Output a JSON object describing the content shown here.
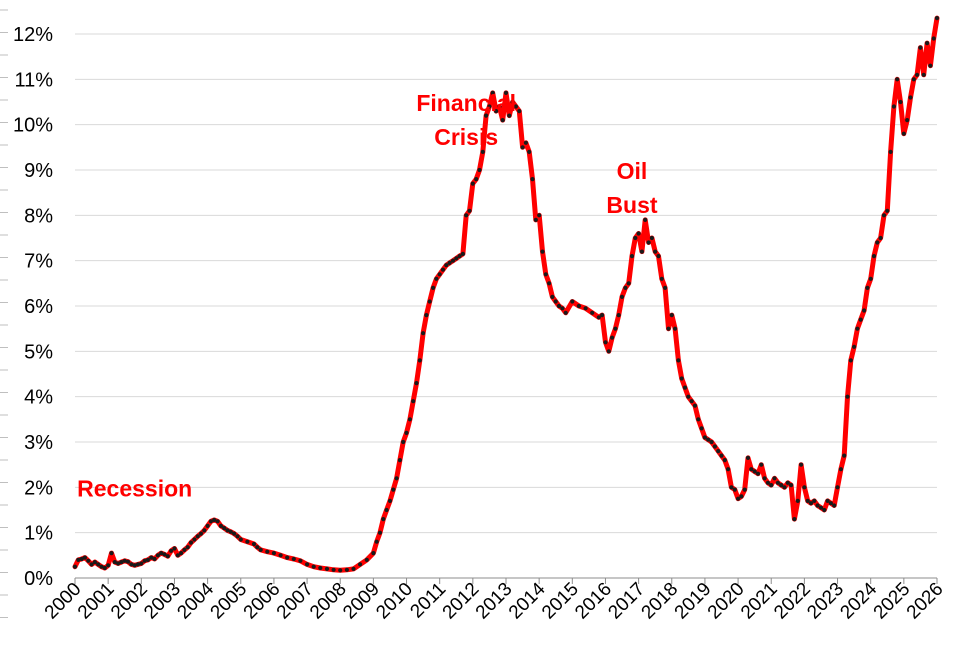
{
  "chart_data": {
    "type": "line",
    "title": "",
    "xlabel": "",
    "ylabel": "",
    "xlim": [
      2000,
      2026
    ],
    "ylim": [
      0,
      12
    ],
    "x_ticks": [
      "2000",
      "2001",
      "2002",
      "2003",
      "2004",
      "2005",
      "2006",
      "2007",
      "2008",
      "2009",
      "2010",
      "2011",
      "2012",
      "2013",
      "2014",
      "2015",
      "2016",
      "2017",
      "2018",
      "2019",
      "2020",
      "2021",
      "2022",
      "2023",
      "2024",
      "2025",
      "2026"
    ],
    "y_ticks": [
      "0%",
      "1%",
      "2%",
      "3%",
      "4%",
      "5%",
      "6%",
      "7%",
      "8%",
      "9%",
      "10%",
      "11%",
      "12%"
    ],
    "grid": "horizontal",
    "legend": "none",
    "colors": {
      "line": "#ff0000",
      "markers": "#1a1a1a",
      "annotations": "#ff0000",
      "grid": "#d9d9d9"
    },
    "annotations": [
      {
        "lines": [
          "Recession"
        ],
        "x": 2001.8,
        "y": 1.8
      },
      {
        "lines": [
          "Financial",
          "Crisis"
        ],
        "x": 2011.8,
        "y": 10.3
      },
      {
        "lines": [
          "Oil",
          "Bust"
        ],
        "x": 2016.8,
        "y": 8.8
      }
    ],
    "series": [
      {
        "unit": "%",
        "points": [
          [
            2000.0,
            0.25
          ],
          [
            2000.1,
            0.4
          ],
          [
            2000.2,
            0.42
          ],
          [
            2000.3,
            0.45
          ],
          [
            2000.4,
            0.38
          ],
          [
            2000.5,
            0.3
          ],
          [
            2000.6,
            0.35
          ],
          [
            2000.7,
            0.3
          ],
          [
            2000.8,
            0.25
          ],
          [
            2000.9,
            0.22
          ],
          [
            2001.0,
            0.28
          ],
          [
            2001.1,
            0.55
          ],
          [
            2001.2,
            0.35
          ],
          [
            2001.3,
            0.32
          ],
          [
            2001.4,
            0.35
          ],
          [
            2001.5,
            0.38
          ],
          [
            2001.6,
            0.36
          ],
          [
            2001.7,
            0.3
          ],
          [
            2001.8,
            0.28
          ],
          [
            2001.9,
            0.3
          ],
          [
            2002.0,
            0.32
          ],
          [
            2002.1,
            0.38
          ],
          [
            2002.2,
            0.4
          ],
          [
            2002.3,
            0.45
          ],
          [
            2002.4,
            0.42
          ],
          [
            2002.5,
            0.5
          ],
          [
            2002.6,
            0.55
          ],
          [
            2002.7,
            0.52
          ],
          [
            2002.8,
            0.48
          ],
          [
            2002.9,
            0.6
          ],
          [
            2003.0,
            0.65
          ],
          [
            2003.1,
            0.5
          ],
          [
            2003.2,
            0.55
          ],
          [
            2003.3,
            0.62
          ],
          [
            2003.4,
            0.68
          ],
          [
            2003.5,
            0.78
          ],
          [
            2003.6,
            0.85
          ],
          [
            2003.7,
            0.92
          ],
          [
            2003.8,
            0.98
          ],
          [
            2003.9,
            1.05
          ],
          [
            2004.0,
            1.15
          ],
          [
            2004.1,
            1.25
          ],
          [
            2004.2,
            1.28
          ],
          [
            2004.3,
            1.25
          ],
          [
            2004.4,
            1.15
          ],
          [
            2004.5,
            1.1
          ],
          [
            2004.6,
            1.05
          ],
          [
            2004.7,
            1.02
          ],
          [
            2004.8,
            0.98
          ],
          [
            2004.9,
            0.92
          ],
          [
            2005.0,
            0.85
          ],
          [
            2005.2,
            0.8
          ],
          [
            2005.4,
            0.75
          ],
          [
            2005.5,
            0.68
          ],
          [
            2005.6,
            0.62
          ],
          [
            2005.8,
            0.58
          ],
          [
            2006.0,
            0.55
          ],
          [
            2006.2,
            0.5
          ],
          [
            2006.4,
            0.45
          ],
          [
            2006.6,
            0.42
          ],
          [
            2006.8,
            0.38
          ],
          [
            2007.0,
            0.3
          ],
          [
            2007.2,
            0.25
          ],
          [
            2007.4,
            0.22
          ],
          [
            2007.6,
            0.2
          ],
          [
            2007.8,
            0.18
          ],
          [
            2008.0,
            0.17
          ],
          [
            2008.2,
            0.18
          ],
          [
            2008.4,
            0.2
          ],
          [
            2008.6,
            0.3
          ],
          [
            2008.8,
            0.4
          ],
          [
            2009.0,
            0.55
          ],
          [
            2009.1,
            0.8
          ],
          [
            2009.2,
            1.0
          ],
          [
            2009.3,
            1.3
          ],
          [
            2009.4,
            1.5
          ],
          [
            2009.5,
            1.7
          ],
          [
            2009.6,
            1.95
          ],
          [
            2009.7,
            2.2
          ],
          [
            2009.8,
            2.6
          ],
          [
            2009.9,
            3.0
          ],
          [
            2010.0,
            3.2
          ],
          [
            2010.1,
            3.5
          ],
          [
            2010.2,
            3.9
          ],
          [
            2010.3,
            4.3
          ],
          [
            2010.4,
            4.8
          ],
          [
            2010.5,
            5.4
          ],
          [
            2010.6,
            5.8
          ],
          [
            2010.7,
            6.1
          ],
          [
            2010.8,
            6.4
          ],
          [
            2010.9,
            6.6
          ],
          [
            2011.0,
            6.7
          ],
          [
            2011.1,
            6.8
          ],
          [
            2011.2,
            6.9
          ],
          [
            2011.3,
            6.95
          ],
          [
            2011.4,
            7.0
          ],
          [
            2011.5,
            7.05
          ],
          [
            2011.6,
            7.1
          ],
          [
            2011.7,
            7.15
          ],
          [
            2011.8,
            8.0
          ],
          [
            2011.9,
            8.1
          ],
          [
            2012.0,
            8.7
          ],
          [
            2012.1,
            8.8
          ],
          [
            2012.2,
            9.0
          ],
          [
            2012.3,
            9.4
          ],
          [
            2012.4,
            10.2
          ],
          [
            2012.5,
            10.4
          ],
          [
            2012.6,
            10.7
          ],
          [
            2012.7,
            10.3
          ],
          [
            2012.8,
            10.4
          ],
          [
            2012.9,
            10.1
          ],
          [
            2013.0,
            10.7
          ],
          [
            2013.1,
            10.2
          ],
          [
            2013.2,
            10.5
          ],
          [
            2013.3,
            10.4
          ],
          [
            2013.4,
            10.3
          ],
          [
            2013.5,
            9.5
          ],
          [
            2013.6,
            9.6
          ],
          [
            2013.7,
            9.4
          ],
          [
            2013.8,
            8.8
          ],
          [
            2013.9,
            7.9
          ],
          [
            2014.0,
            8.0
          ],
          [
            2014.1,
            7.2
          ],
          [
            2014.2,
            6.7
          ],
          [
            2014.3,
            6.5
          ],
          [
            2014.4,
            6.2
          ],
          [
            2014.5,
            6.1
          ],
          [
            2014.6,
            6.0
          ],
          [
            2014.7,
            5.95
          ],
          [
            2014.8,
            5.85
          ],
          [
            2015.0,
            6.1
          ],
          [
            2015.2,
            6.0
          ],
          [
            2015.4,
            5.95
          ],
          [
            2015.6,
            5.85
          ],
          [
            2015.8,
            5.75
          ],
          [
            2015.9,
            5.8
          ],
          [
            2016.0,
            5.2
          ],
          [
            2016.1,
            5.0
          ],
          [
            2016.2,
            5.3
          ],
          [
            2016.3,
            5.5
          ],
          [
            2016.4,
            5.8
          ],
          [
            2016.5,
            6.2
          ],
          [
            2016.6,
            6.4
          ],
          [
            2016.7,
            6.5
          ],
          [
            2016.8,
            7.1
          ],
          [
            2016.9,
            7.5
          ],
          [
            2017.0,
            7.6
          ],
          [
            2017.1,
            7.2
          ],
          [
            2017.2,
            7.9
          ],
          [
            2017.3,
            7.4
          ],
          [
            2017.4,
            7.5
          ],
          [
            2017.5,
            7.2
          ],
          [
            2017.6,
            7.1
          ],
          [
            2017.7,
            6.6
          ],
          [
            2017.8,
            6.4
          ],
          [
            2017.9,
            5.5
          ],
          [
            2018.0,
            5.8
          ],
          [
            2018.1,
            5.5
          ],
          [
            2018.2,
            4.8
          ],
          [
            2018.3,
            4.4
          ],
          [
            2018.4,
            4.2
          ],
          [
            2018.5,
            4.0
          ],
          [
            2018.6,
            3.9
          ],
          [
            2018.7,
            3.8
          ],
          [
            2018.8,
            3.5
          ],
          [
            2018.9,
            3.3
          ],
          [
            2019.0,
            3.1
          ],
          [
            2019.1,
            3.05
          ],
          [
            2019.2,
            3.0
          ],
          [
            2019.3,
            2.9
          ],
          [
            2019.4,
            2.8
          ],
          [
            2019.5,
            2.7
          ],
          [
            2019.6,
            2.6
          ],
          [
            2019.7,
            2.4
          ],
          [
            2019.8,
            2.0
          ],
          [
            2019.9,
            1.95
          ],
          [
            2020.0,
            1.75
          ],
          [
            2020.1,
            1.8
          ],
          [
            2020.2,
            1.95
          ],
          [
            2020.3,
            2.65
          ],
          [
            2020.4,
            2.4
          ],
          [
            2020.5,
            2.35
          ],
          [
            2020.6,
            2.3
          ],
          [
            2020.7,
            2.5
          ],
          [
            2020.8,
            2.2
          ],
          [
            2020.9,
            2.1
          ],
          [
            2021.0,
            2.05
          ],
          [
            2021.1,
            2.2
          ],
          [
            2021.2,
            2.1
          ],
          [
            2021.3,
            2.05
          ],
          [
            2021.4,
            2.0
          ],
          [
            2021.5,
            2.1
          ],
          [
            2021.6,
            2.05
          ],
          [
            2021.7,
            1.3
          ],
          [
            2021.8,
            1.7
          ],
          [
            2021.9,
            2.5
          ],
          [
            2022.0,
            2.0
          ],
          [
            2022.1,
            1.7
          ],
          [
            2022.2,
            1.65
          ],
          [
            2022.3,
            1.7
          ],
          [
            2022.4,
            1.6
          ],
          [
            2022.5,
            1.55
          ],
          [
            2022.6,
            1.5
          ],
          [
            2022.7,
            1.7
          ],
          [
            2022.8,
            1.65
          ],
          [
            2022.9,
            1.6
          ],
          [
            2023.0,
            2.0
          ],
          [
            2023.1,
            2.4
          ],
          [
            2023.2,
            2.7
          ],
          [
            2023.3,
            4.0
          ],
          [
            2023.4,
            4.8
          ],
          [
            2023.5,
            5.1
          ],
          [
            2023.6,
            5.5
          ],
          [
            2023.7,
            5.7
          ],
          [
            2023.8,
            5.9
          ],
          [
            2023.9,
            6.4
          ],
          [
            2024.0,
            6.6
          ],
          [
            2024.1,
            7.1
          ],
          [
            2024.2,
            7.4
          ],
          [
            2024.3,
            7.5
          ],
          [
            2024.4,
            8.0
          ],
          [
            2024.5,
            8.1
          ],
          [
            2024.6,
            9.4
          ],
          [
            2024.7,
            10.4
          ],
          [
            2024.8,
            11.0
          ],
          [
            2024.9,
            10.5
          ],
          [
            2025.0,
            9.8
          ],
          [
            2025.1,
            10.1
          ],
          [
            2025.2,
            10.6
          ],
          [
            2025.3,
            11.0
          ],
          [
            2025.4,
            11.1
          ],
          [
            2025.5,
            11.7
          ],
          [
            2025.6,
            11.1
          ],
          [
            2025.7,
            11.8
          ],
          [
            2025.8,
            11.3
          ],
          [
            2025.9,
            11.9
          ],
          [
            2026.0,
            12.35
          ]
        ]
      }
    ]
  }
}
